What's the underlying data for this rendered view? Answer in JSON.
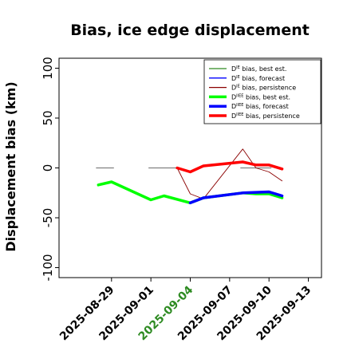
{
  "chart_data": {
    "type": "line",
    "title": "Bias, ice edge displacement",
    "ylabel": "Displacement bias (km)",
    "xlabel": "",
    "ylim": [
      -110,
      110
    ],
    "yticks": [
      -100,
      -50,
      0,
      50,
      100
    ],
    "xlim": [
      "2025-08-25",
      "2025-09-14"
    ],
    "xticks": [
      "2025-08-29",
      "2025-09-01",
      "2025-09-04",
      "2025-09-07",
      "2025-09-10",
      "2025-09-13"
    ],
    "highlighted_xtick": "2025-09-04",
    "highlight_color": "#2e8b22",
    "grid": false,
    "legend_position": "top-right",
    "legend": [
      {
        "prefix": "D",
        "sup": "IE",
        "suffix": " bias, best est.",
        "color": "#2e8b22",
        "width": "thin"
      },
      {
        "prefix": "D",
        "sup": "IE",
        "suffix": " bias, forecast",
        "color": "#0000ff",
        "width": "thin"
      },
      {
        "prefix": "D",
        "sup": "IE",
        "suffix": " bias, persistence",
        "color": "#8b0000",
        "width": "thin"
      },
      {
        "prefix": "D",
        "sup": "IIEE",
        "suffix": " bias, best est.",
        "color": "#00ff00",
        "width": "thick"
      },
      {
        "prefix": "D",
        "sup": "IIEE",
        "suffix": " bias, forecast",
        "color": "#0000ff",
        "width": "thick"
      },
      {
        "prefix": "D",
        "sup": "IIEE",
        "suffix": " bias, persistence",
        "color": "#ff0000",
        "width": "thick"
      }
    ],
    "zero_markers": {
      "color": "#808080",
      "segments": [
        [
          "2025-08-28",
          "2025-08-29"
        ],
        [
          "2025-09-01",
          "2025-09-03"
        ],
        [
          "2025-09-08",
          "2025-09-10"
        ]
      ]
    },
    "series": [
      {
        "legend_index": 0,
        "color": "#00dd00",
        "width": "thin",
        "x": [
          "2025-08-28",
          "2025-08-29",
          "2025-09-01",
          "2025-09-02",
          "2025-09-04",
          "2025-09-05",
          "2025-09-08",
          "2025-09-09",
          "2025-09-10",
          "2025-09-11"
        ],
        "y": [
          -17,
          -14,
          -32,
          -28,
          -35,
          -30,
          -25,
          -26,
          -26,
          -30
        ]
      },
      {
        "legend_index": 1,
        "color": "#0000ff",
        "width": "thin",
        "x": [
          "2025-09-04",
          "2025-09-05",
          "2025-09-08",
          "2025-09-10",
          "2025-09-11"
        ],
        "y": [
          -35,
          -30,
          -25,
          -25,
          -29
        ]
      },
      {
        "legend_index": 2,
        "color": "#8b0000",
        "width": "thin",
        "x": [
          "2025-09-03",
          "2025-09-04",
          "2025-09-05",
          "2025-09-08",
          "2025-09-09",
          "2025-09-10",
          "2025-09-11"
        ],
        "y": [
          0,
          -26,
          -31,
          19,
          0,
          -4,
          -13
        ]
      },
      {
        "legend_index": 3,
        "color": "#00ff00",
        "width": "thick",
        "x": [
          "2025-08-28",
          "2025-08-29",
          "2025-09-01",
          "2025-09-02",
          "2025-09-04",
          "2025-09-05",
          "2025-09-08",
          "2025-09-09",
          "2025-09-10",
          "2025-09-11"
        ],
        "y": [
          -17,
          -14,
          -32,
          -28,
          -35,
          -30,
          -25,
          -26,
          -26,
          -30
        ]
      },
      {
        "legend_index": 4,
        "color": "#0000ff",
        "width": "thick",
        "x": [
          "2025-09-04",
          "2025-09-05",
          "2025-09-08",
          "2025-09-10",
          "2025-09-11"
        ],
        "y": [
          -35,
          -30,
          -25,
          -24,
          -28
        ]
      },
      {
        "legend_index": 5,
        "color": "#ff0000",
        "width": "thick",
        "x": [
          "2025-09-03",
          "2025-09-04",
          "2025-09-05",
          "2025-09-08",
          "2025-09-09",
          "2025-09-10",
          "2025-09-11"
        ],
        "y": [
          0,
          -4,
          2,
          6,
          3,
          3,
          -1
        ]
      }
    ]
  }
}
